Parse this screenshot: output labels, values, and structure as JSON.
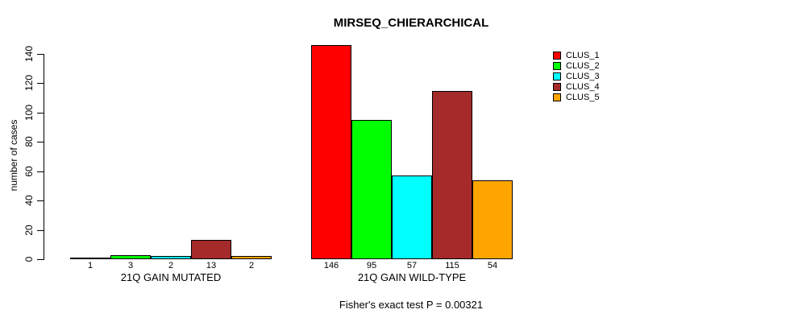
{
  "chart_data": {
    "type": "bar",
    "title": "MIRSEQ_CHIERARCHICAL",
    "ylabel": "number of cases",
    "xlabel": "",
    "ylim": [
      0,
      140
    ],
    "yticks": [
      0,
      20,
      40,
      60,
      80,
      100,
      120,
      140
    ],
    "grid": false,
    "legend_position": "right",
    "categories": [
      "21Q GAIN MUTATED",
      "21Q GAIN WILD-TYPE"
    ],
    "series": [
      {
        "name": "CLUS_1",
        "color": "#FF0000",
        "values": [
          1,
          146
        ]
      },
      {
        "name": "CLUS_2",
        "color": "#00FF00",
        "values": [
          3,
          95
        ]
      },
      {
        "name": "CLUS_3",
        "color": "#00FFFF",
        "values": [
          2,
          57
        ]
      },
      {
        "name": "CLUS_4",
        "color": "#A52A2A",
        "values": [
          13,
          115
        ]
      },
      {
        "name": "CLUS_5",
        "color": "#FFA500",
        "values": [
          2,
          54
        ]
      }
    ],
    "bar_value_labels_shown": true,
    "annotation": "Fisher's exact test P = 0.00321"
  }
}
